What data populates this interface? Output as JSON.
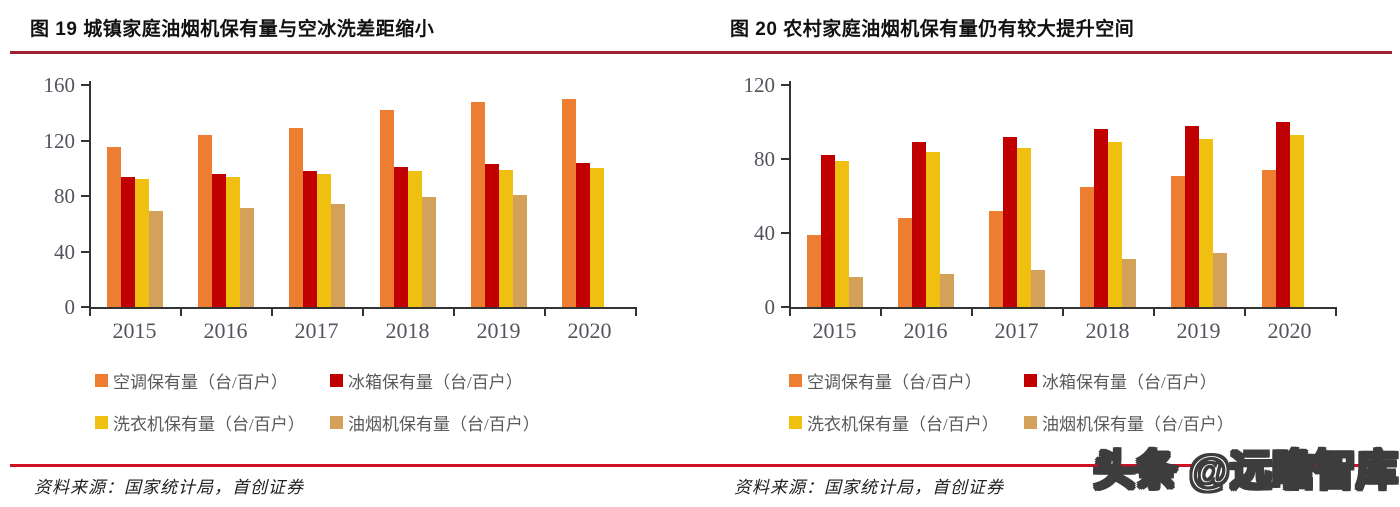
{
  "page": {
    "watermark": "头条 @远瞻智库",
    "rule_colors": {
      "top": "#9E2133",
      "bottom": "#CE1126"
    }
  },
  "chart_data": [
    {
      "type": "bar",
      "title": "图 19 城镇家庭油烟机保有量与空冰洗差距缩小",
      "categories": [
        "2015",
        "2016",
        "2017",
        "2018",
        "2019",
        "2020"
      ],
      "ylim": [
        0,
        160
      ],
      "yticks": [
        0,
        40,
        80,
        120,
        160
      ],
      "grid": false,
      "legend_position": "bottom",
      "series": [
        {
          "name": "空调保有量（台/百户）",
          "color": "#ED7D31",
          "values": [
            115,
            124,
            129,
            142,
            148,
            150
          ]
        },
        {
          "name": "冰箱保有量（台/百户）",
          "color": "#C00000",
          "values": [
            94,
            96,
            98,
            101,
            103,
            104
          ]
        },
        {
          "name": "洗衣机保有量（台/百户）",
          "color": "#F0C010",
          "values": [
            92,
            94,
            96,
            98,
            99,
            100
          ]
        },
        {
          "name": "油烟机保有量（台/百户）",
          "color": "#D3A159",
          "values": [
            69,
            71,
            74,
            79,
            81,
            null
          ]
        }
      ],
      "source": "资料来源：国家统计局，首创证券"
    },
    {
      "type": "bar",
      "title": "图 20 农村家庭油烟机保有量仍有较大提升空间",
      "categories": [
        "2015",
        "2016",
        "2017",
        "2018",
        "2019",
        "2020"
      ],
      "ylim": [
        0,
        120
      ],
      "yticks": [
        0,
        40,
        80,
        120
      ],
      "grid": false,
      "legend_position": "bottom",
      "series": [
        {
          "name": "空调保有量（台/百户）",
          "color": "#ED7D31",
          "values": [
            39,
            48,
            52,
            65,
            71,
            74
          ]
        },
        {
          "name": "冰箱保有量（台/百户）",
          "color": "#C00000",
          "values": [
            82,
            89,
            92,
            96,
            98,
            100
          ]
        },
        {
          "name": "洗衣机保有量（台/百户）",
          "color": "#F0C010",
          "values": [
            79,
            84,
            86,
            89,
            91,
            93
          ]
        },
        {
          "name": "油烟机保有量（台/百户）",
          "color": "#D3A159",
          "values": [
            16,
            18,
            20,
            26,
            29,
            null
          ]
        }
      ],
      "source": "资料来源：国家统计局，首创证券"
    }
  ]
}
